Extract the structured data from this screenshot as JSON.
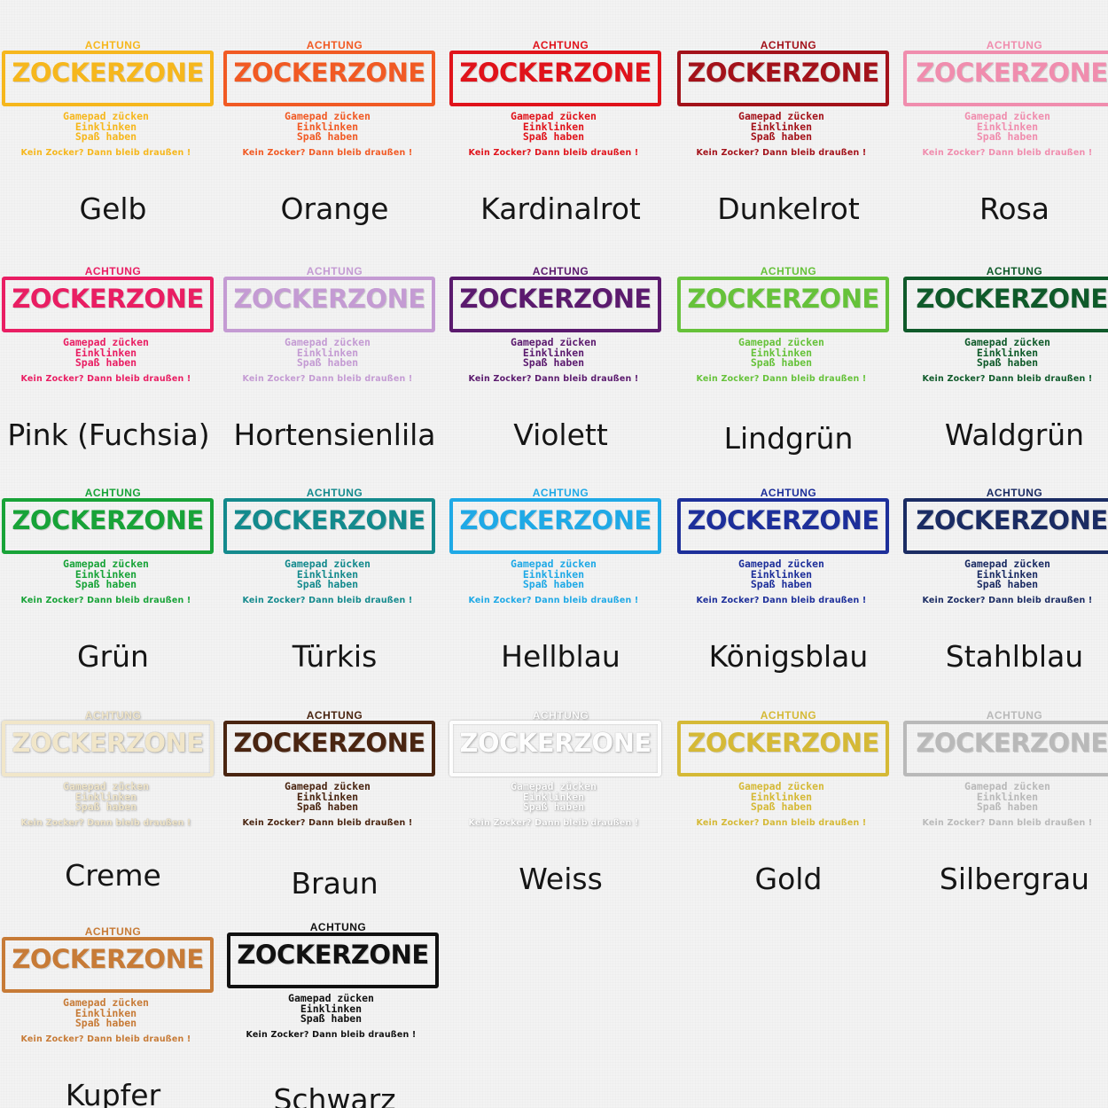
{
  "sign": {
    "achtung": "ACHTUNG",
    "title": "ZOCKERZONE",
    "line1": "Gamepad zücken",
    "line2": "Einklinken",
    "line3": "Spaß haben",
    "line4": "Kein Zocker? Dann bleib draußen !"
  },
  "colors": [
    {
      "name": "Gelb",
      "hex": "#f6b71d"
    },
    {
      "name": "Orange",
      "hex": "#f15a24"
    },
    {
      "name": "Kardinalrot",
      "hex": "#e0131b"
    },
    {
      "name": "Dunkelrot",
      "hex": "#a3121a"
    },
    {
      "name": "Rosa",
      "hex": "#f08dae"
    },
    {
      "name": "Pink (Fuchsia)",
      "hex": "#e91e63"
    },
    {
      "name": "Hortensienlila",
      "hex": "#c49bd3"
    },
    {
      "name": "Violett",
      "hex": "#5b1a6e"
    },
    {
      "name": "Lindgrün",
      "hex": "#66c23a"
    },
    {
      "name": "Waldgrün",
      "hex": "#0f5a2a"
    },
    {
      "name": "Grün",
      "hex": "#18a338"
    },
    {
      "name": "Türkis",
      "hex": "#148a8d"
    },
    {
      "name": "Hellblau",
      "hex": "#1fa9e6"
    },
    {
      "name": "Königsblau",
      "hex": "#1d2f9a"
    },
    {
      "name": "Stahlblau",
      "hex": "#1b2c63"
    },
    {
      "name": "Creme",
      "hex": "#f1e6c9"
    },
    {
      "name": "Braun",
      "hex": "#4a2511"
    },
    {
      "name": "Weiss",
      "hex": "#fdfdfd"
    },
    {
      "name": "Gold",
      "hex": "#d5b936"
    },
    {
      "name": "Silbergrau",
      "hex": "#b9b9b9"
    },
    {
      "name": "Kupfer",
      "hex": "#c77b37"
    },
    {
      "name": "Schwarz",
      "hex": "#111111"
    }
  ]
}
